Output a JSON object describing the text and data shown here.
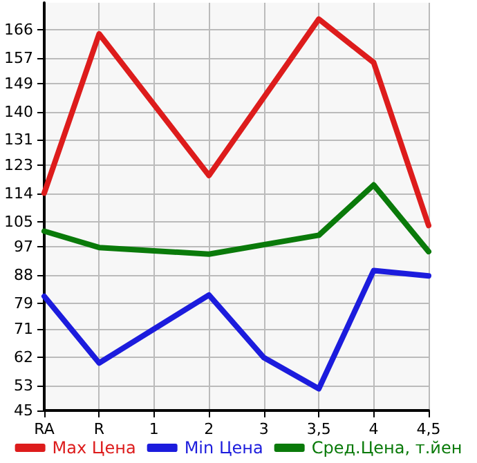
{
  "chart_data": {
    "type": "line",
    "categories": [
      "RA",
      "R",
      "1",
      "2",
      "3",
      "3,5",
      "4",
      "4,5"
    ],
    "series": [
      {
        "name": "Max Цена",
        "color": "#dd1c1c",
        "values": [
          114.1,
          164.7,
          null,
          119.7,
          null,
          169.4,
          155.6,
          103.8
        ]
      },
      {
        "name": "Min Цена",
        "color": "#1c1cdd",
        "values": [
          81.3,
          60.1,
          null,
          81.7,
          61.8,
          51.9,
          89.5,
          87.8
        ]
      },
      {
        "name": "Сред.Цена, т.йен",
        "color": "#0a7a0a",
        "values": [
          102.0,
          96.8,
          null,
          94.7,
          null,
          100.7,
          116.7,
          95.5
        ]
      }
    ],
    "ylim": [
      45,
      174.6
    ],
    "yticks": [
      45,
      53,
      62,
      71,
      79,
      88,
      97,
      105,
      114,
      123,
      131,
      140,
      149,
      157,
      166
    ],
    "grid": true,
    "legend": "bottom",
    "marker": "none",
    "line_style": "solid"
  }
}
